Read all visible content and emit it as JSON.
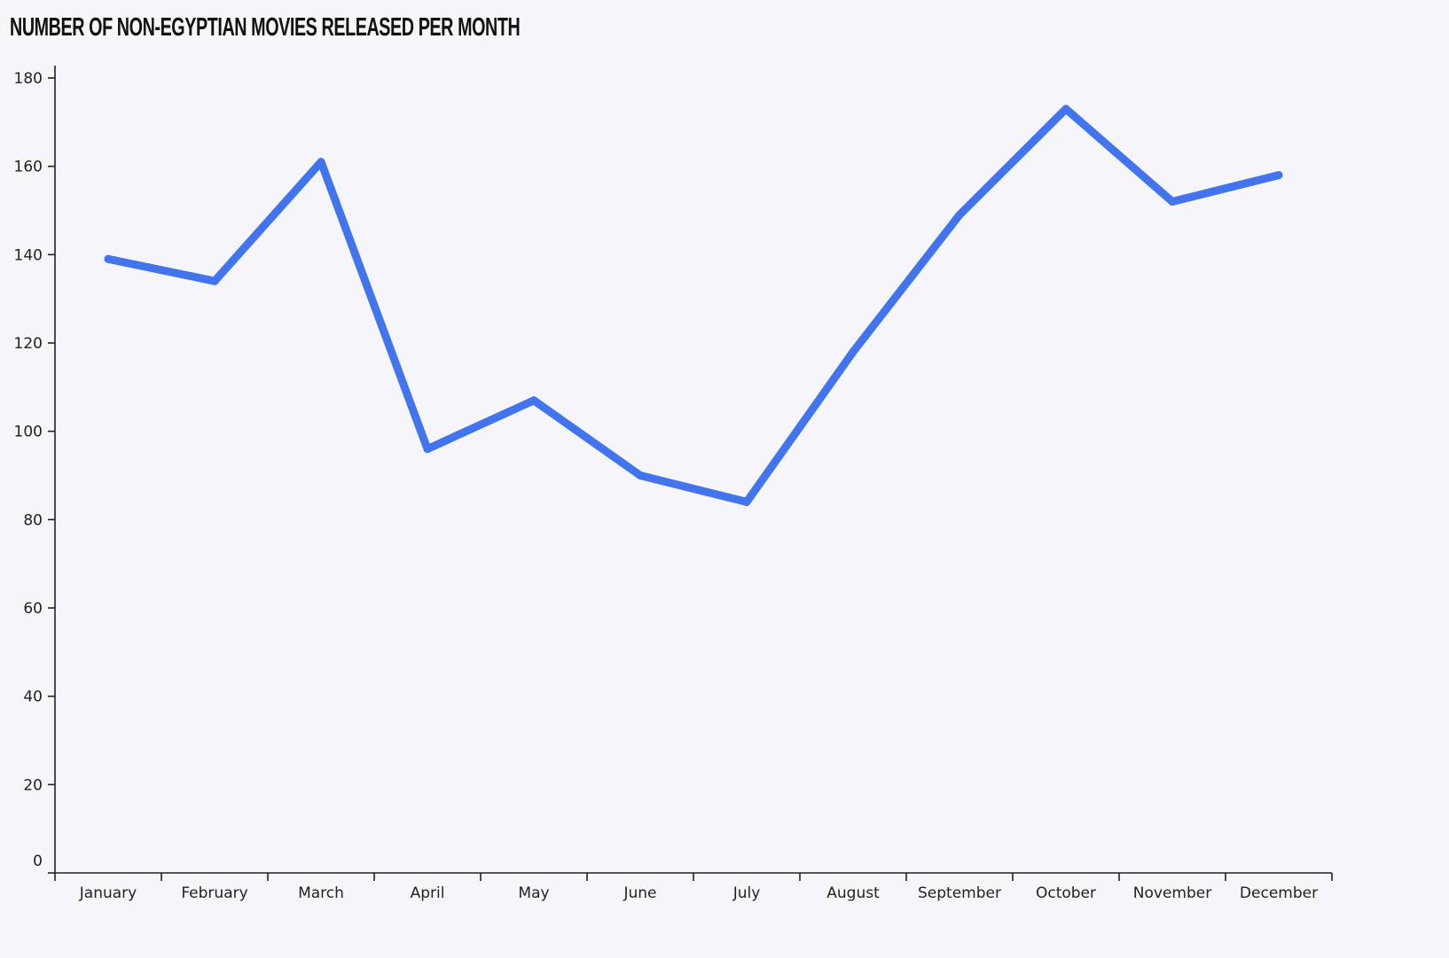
{
  "chart_data": {
    "type": "line",
    "title": "NUMBER OF NON-EGYPTIAN MOVIES RELEASED PER MONTH",
    "categories": [
      "January",
      "February",
      "March",
      "April",
      "May",
      "June",
      "July",
      "August",
      "September",
      "October",
      "November",
      "December"
    ],
    "series": [
      {
        "values": [
          139,
          134,
          161,
          96,
          107,
          90,
          84,
          118,
          149,
          173,
          152,
          158
        ]
      }
    ],
    "ylim": [
      0,
      180
    ],
    "yticks": [
      "0",
      "20",
      "40",
      "60",
      "80",
      "100",
      "120",
      "140",
      "160",
      "180"
    ],
    "grid": false,
    "line_color": "#4274ee",
    "axis_color": "#222222",
    "background": "#f6f6fa"
  }
}
